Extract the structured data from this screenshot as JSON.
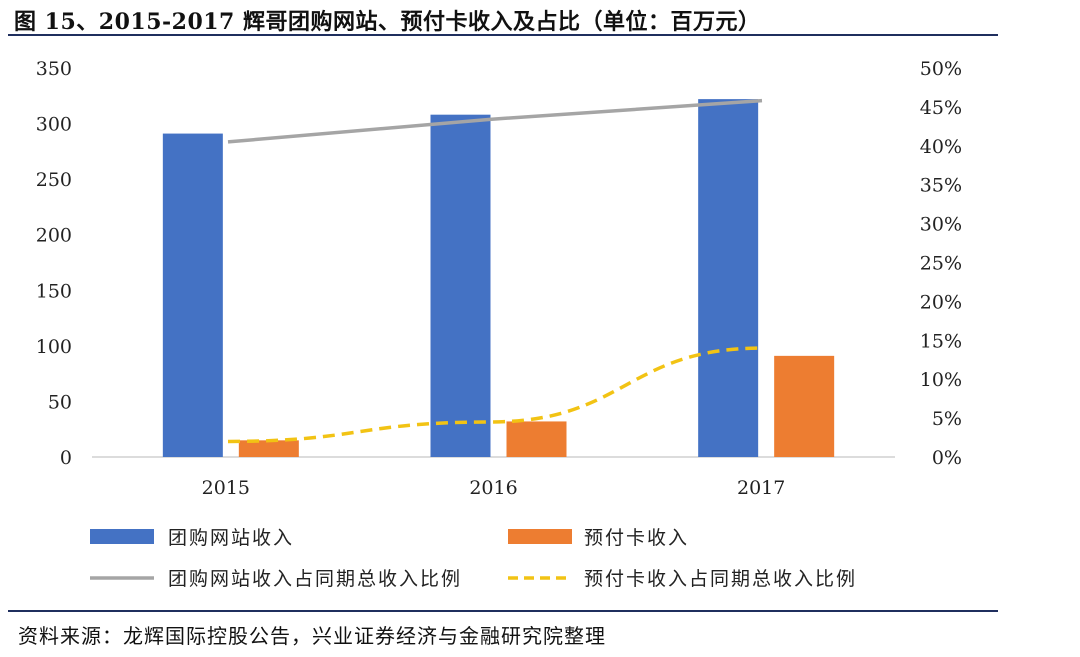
{
  "title": "图 15、2015-2017 辉哥团购网站、预付卡收入及占比（单位：百万元）",
  "source": "资料来源：龙辉国际控股公告，兴业证券经济与金融研究院整理",
  "chart_data": {
    "type": "bar",
    "categories": [
      "2015",
      "2016",
      "2017"
    ],
    "y_left": {
      "ylim": [
        0,
        350
      ],
      "ticks": [
        0,
        50,
        100,
        150,
        200,
        250,
        300,
        350
      ]
    },
    "y_right": {
      "ylim": [
        0,
        50
      ],
      "ticks": [
        "0%",
        "5%",
        "10%",
        "15%",
        "20%",
        "25%",
        "30%",
        "35%",
        "40%",
        "45%",
        "50%"
      ]
    },
    "bar_series": [
      {
        "name": "团购网站收入",
        "values": [
          291,
          308,
          322
        ],
        "color": "#4472C4"
      },
      {
        "name": "预付卡收入",
        "values": [
          15,
          32,
          91
        ],
        "color": "#ED7D31"
      }
    ],
    "line_series": [
      {
        "name": "团购网站收入占同期总收入比例",
        "values": [
          40.5,
          43.4,
          45.8
        ],
        "color": "#A5A5A5",
        "style": "solid",
        "axis": "right"
      },
      {
        "name": "预付卡收入占同期总收入比例",
        "values": [
          2.0,
          4.5,
          14.0
        ],
        "color": "#F2C314",
        "style": "dashed",
        "axis": "right"
      }
    ],
    "grid": false,
    "legend_position": "bottom"
  }
}
